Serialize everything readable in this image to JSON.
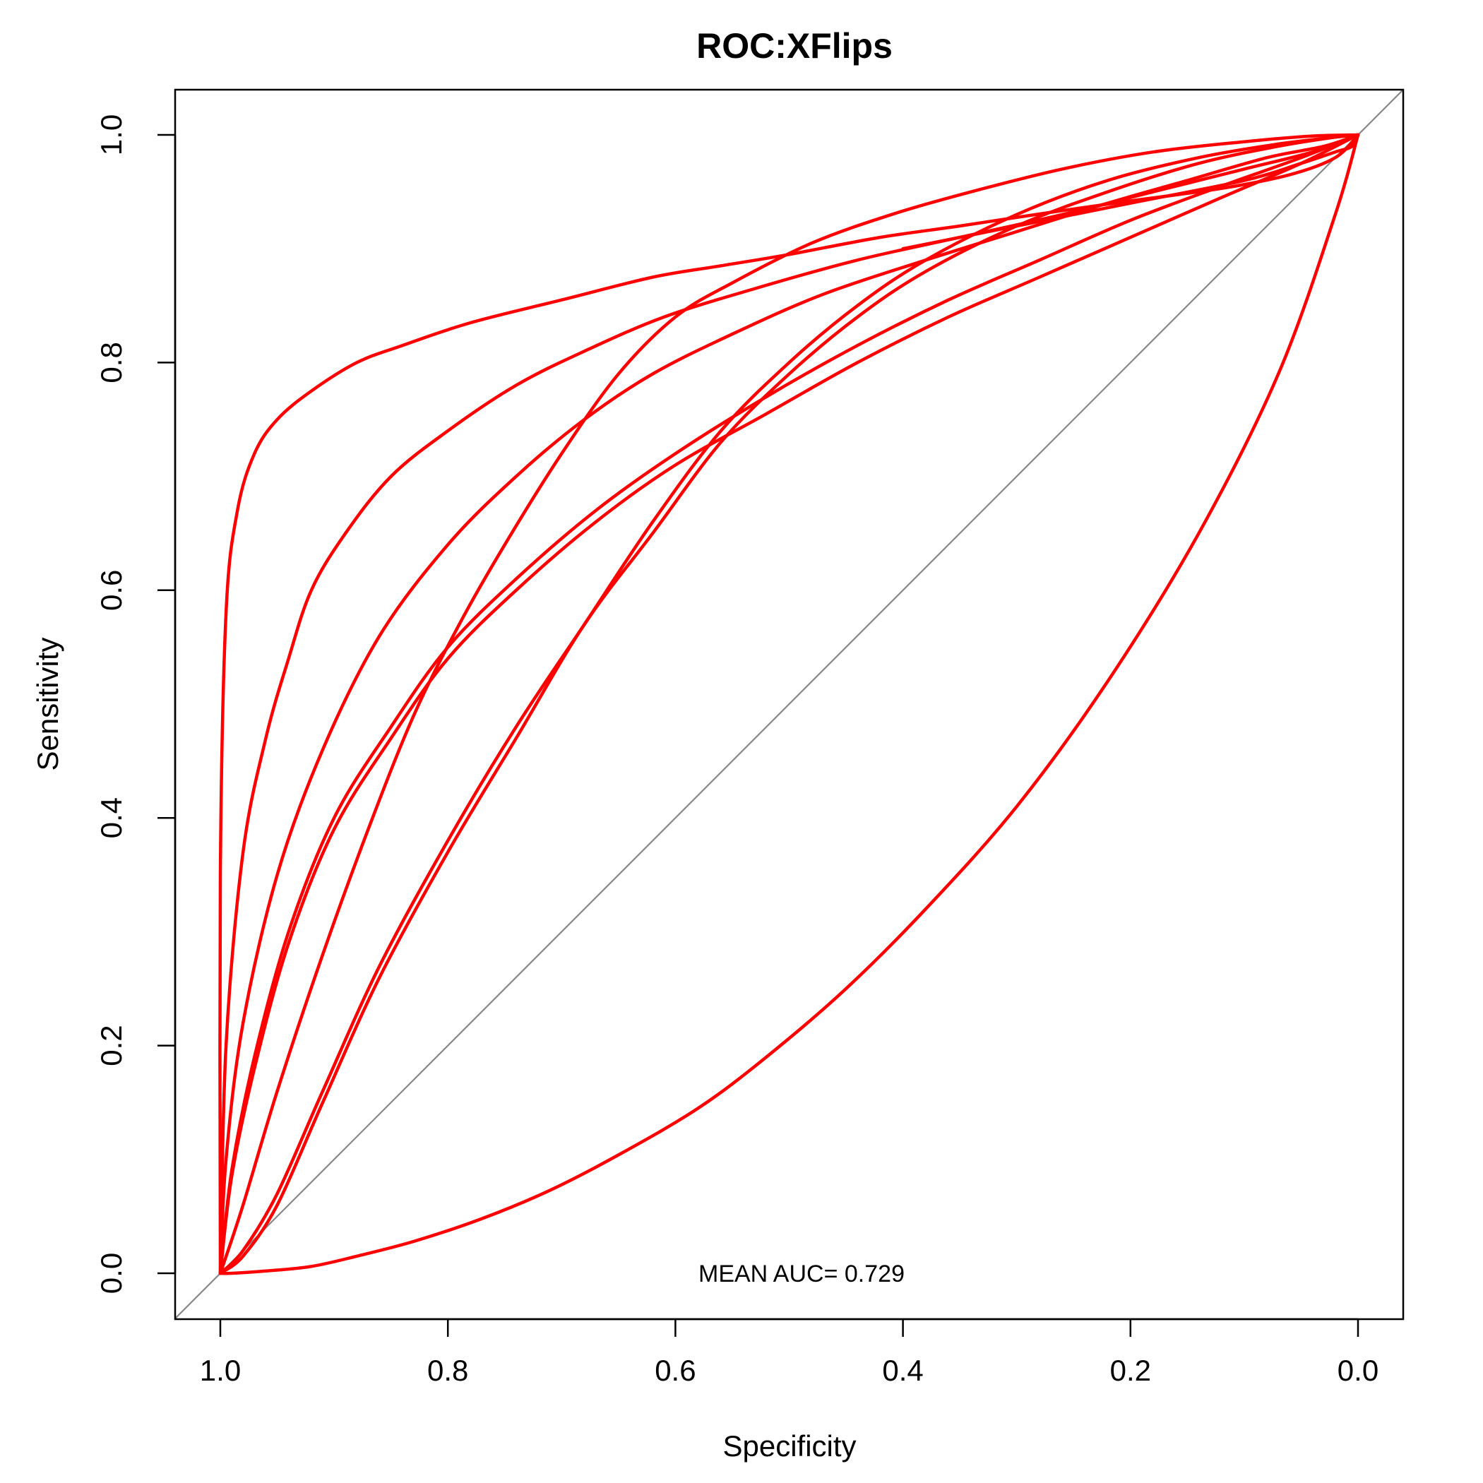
{
  "chart_data": {
    "type": "line",
    "title": "ROC:XFlips",
    "xlabel": "Specificity",
    "ylabel": "Sensitivity",
    "xlim": [
      1.0,
      0.0
    ],
    "ylim": [
      0.0,
      1.0
    ],
    "x_reversed": true,
    "xticks": [
      "1.0",
      "0.8",
      "0.6",
      "0.4",
      "0.2",
      "0.0"
    ],
    "yticks": [
      "0.0",
      "0.2",
      "0.4",
      "0.6",
      "0.8",
      "1.0"
    ],
    "grid": false,
    "legend": "none",
    "reference_line": {
      "from": [
        1.0,
        0.0
      ],
      "to": [
        0.0,
        1.0
      ],
      "color": "#888888"
    },
    "annotation": "MEAN AUC= 0.729",
    "series_color": "#ff0000",
    "series": [
      {
        "x": [
          1.0,
          1.0,
          0.995,
          0.985,
          0.97,
          0.95,
          0.92,
          0.88,
          0.84,
          0.78,
          0.7,
          0.62,
          0.56,
          0.5,
          0.42,
          0.35,
          0.27,
          0.2,
          0.12,
          0.06,
          0.02,
          0.0
        ],
        "y": [
          0.0,
          0.35,
          0.58,
          0.67,
          0.72,
          0.75,
          0.775,
          0.8,
          0.815,
          0.835,
          0.855,
          0.875,
          0.885,
          0.895,
          0.91,
          0.92,
          0.932,
          0.942,
          0.953,
          0.965,
          0.98,
          1.0
        ]
      },
      {
        "x": [
          1.0,
          0.995,
          0.98,
          0.96,
          0.94,
          0.92,
          0.89,
          0.85,
          0.8,
          0.74,
          0.68,
          0.61,
          0.53,
          0.44,
          0.35,
          0.26,
          0.18,
          0.1,
          0.04,
          0.0
        ],
        "y": [
          0.0,
          0.2,
          0.37,
          0.47,
          0.54,
          0.6,
          0.65,
          0.7,
          0.74,
          0.78,
          0.81,
          0.84,
          0.865,
          0.89,
          0.91,
          0.93,
          0.95,
          0.97,
          0.985,
          1.0
        ]
      },
      {
        "x": [
          1.0,
          0.995,
          0.98,
          0.95,
          0.91,
          0.86,
          0.8,
          0.74,
          0.68,
          0.62,
          0.55,
          0.47,
          0.38,
          0.3,
          0.22,
          0.15,
          0.08,
          0.03,
          0.0
        ],
        "y": [
          0.0,
          0.1,
          0.22,
          0.35,
          0.46,
          0.56,
          0.64,
          0.7,
          0.75,
          0.79,
          0.825,
          0.86,
          0.89,
          0.915,
          0.94,
          0.96,
          0.98,
          0.99,
          1.0
        ]
      },
      {
        "x": [
          1.0,
          0.99,
          0.97,
          0.94,
          0.9,
          0.85,
          0.8,
          0.74,
          0.67,
          0.6,
          0.52,
          0.44,
          0.36,
          0.28,
          0.2,
          0.12,
          0.05,
          0.0
        ],
        "y": [
          0.0,
          0.09,
          0.19,
          0.3,
          0.4,
          0.48,
          0.55,
          0.61,
          0.67,
          0.72,
          0.77,
          0.815,
          0.855,
          0.89,
          0.925,
          0.955,
          0.98,
          1.0
        ]
      },
      {
        "x": [
          1.0,
          0.99,
          0.97,
          0.94,
          0.9,
          0.85,
          0.8,
          0.74,
          0.67,
          0.6,
          0.52,
          0.44,
          0.36,
          0.28,
          0.2,
          0.12,
          0.05,
          0.0
        ],
        "y": [
          0.0,
          0.085,
          0.18,
          0.29,
          0.39,
          0.47,
          0.54,
          0.6,
          0.66,
          0.71,
          0.755,
          0.8,
          0.84,
          0.875,
          0.91,
          0.945,
          0.975,
          1.0
        ]
      },
      {
        "x": [
          1.0,
          0.98,
          0.95,
          0.91,
          0.87,
          0.83,
          0.79,
          0.75,
          0.7,
          0.65,
          0.6,
          0.55,
          0.48,
          0.41,
          0.34,
          0.26,
          0.18,
          0.1,
          0.04,
          0.0
        ],
        "y": [
          0.0,
          0.06,
          0.16,
          0.28,
          0.39,
          0.49,
          0.57,
          0.64,
          0.72,
          0.79,
          0.84,
          0.87,
          0.905,
          0.93,
          0.95,
          0.97,
          0.985,
          0.994,
          0.999,
          1.0
        ]
      },
      {
        "x": [
          1.0,
          0.98,
          0.95,
          0.91,
          0.86,
          0.8,
          0.74,
          0.68,
          0.62,
          0.56,
          0.5,
          0.44,
          0.38,
          0.3,
          0.22,
          0.14,
          0.07,
          0.02,
          0.0
        ],
        "y": [
          0.0,
          0.02,
          0.07,
          0.16,
          0.27,
          0.38,
          0.48,
          0.57,
          0.66,
          0.74,
          0.8,
          0.85,
          0.89,
          0.93,
          0.96,
          0.98,
          0.992,
          0.998,
          1.0
        ]
      },
      {
        "x": [
          1.0,
          0.98,
          0.95,
          0.91,
          0.86,
          0.8,
          0.74,
          0.68,
          0.62,
          0.56,
          0.5,
          0.44,
          0.38,
          0.3,
          0.22,
          0.14,
          0.07,
          0.02,
          0.0
        ],
        "y": [
          0.0,
          0.015,
          0.06,
          0.15,
          0.26,
          0.37,
          0.47,
          0.57,
          0.65,
          0.73,
          0.79,
          0.84,
          0.88,
          0.92,
          0.95,
          0.975,
          0.99,
          0.998,
          1.0
        ]
      },
      {
        "x": [
          1.0,
          0.99,
          0.96,
          0.92,
          0.88,
          0.83,
          0.77,
          0.71,
          0.65,
          0.58,
          0.52,
          0.45,
          0.38,
          0.3,
          0.22,
          0.14,
          0.07,
          0.02,
          0.0
        ],
        "y": [
          0.0,
          0.0,
          0.002,
          0.006,
          0.015,
          0.028,
          0.048,
          0.073,
          0.104,
          0.145,
          0.19,
          0.25,
          0.32,
          0.41,
          0.52,
          0.65,
          0.79,
          0.93,
          1.0
        ]
      },
      {
        "x": [
          0.0,
          0.005,
          0.02,
          0.05,
          0.1,
          0.2,
          0.3,
          0.4
        ],
        "y": [
          1.0,
          0.99,
          0.985,
          0.975,
          0.96,
          0.94,
          0.92,
          0.9
        ]
      }
    ]
  }
}
